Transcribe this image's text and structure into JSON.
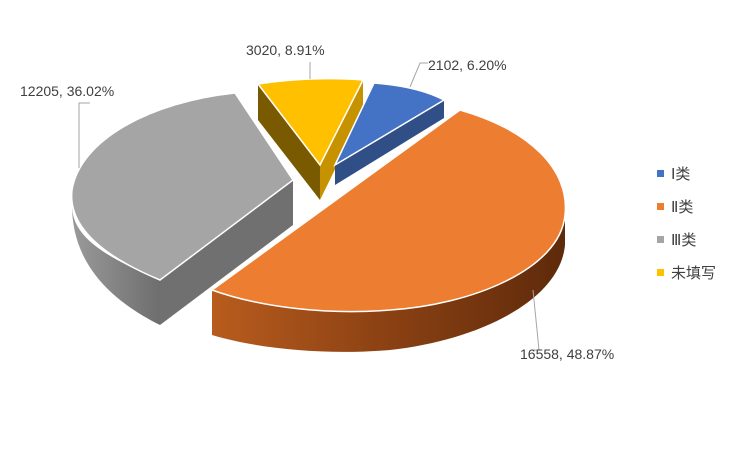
{
  "chart_data": {
    "type": "pie",
    "title": "",
    "categories": [
      "Ⅰ类",
      "Ⅱ类",
      "Ⅲ类",
      "未填写"
    ],
    "values": [
      2102,
      16558,
      12205,
      3020
    ],
    "percents": [
      "6.20%",
      "48.87%",
      "36.02%",
      "8.91%"
    ],
    "data_labels": [
      "2102, 6.20%",
      "16558, 48.87%",
      "12205, 36.02%",
      "3020, 8.91%"
    ],
    "colors": [
      "#4472C4",
      "#ED7D31",
      "#A5A5A5",
      "#FFC000"
    ],
    "style": "3d-exploded",
    "legend": {
      "position": "right",
      "entries": [
        "Ⅰ类",
        "Ⅱ类",
        "Ⅲ类",
        "未填写"
      ]
    }
  }
}
